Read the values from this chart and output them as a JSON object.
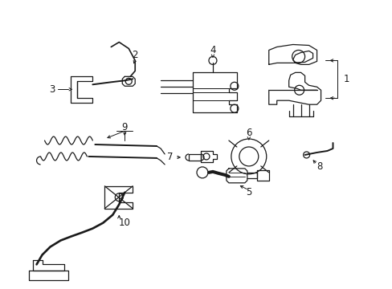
{
  "background_color": "#ffffff",
  "line_color": "#1a1a1a",
  "line_width": 0.9,
  "fig_width": 4.89,
  "fig_height": 3.6,
  "dpi": 100,
  "components": {
    "label_fontsize": 8.5,
    "arrow_lw": 0.7
  }
}
